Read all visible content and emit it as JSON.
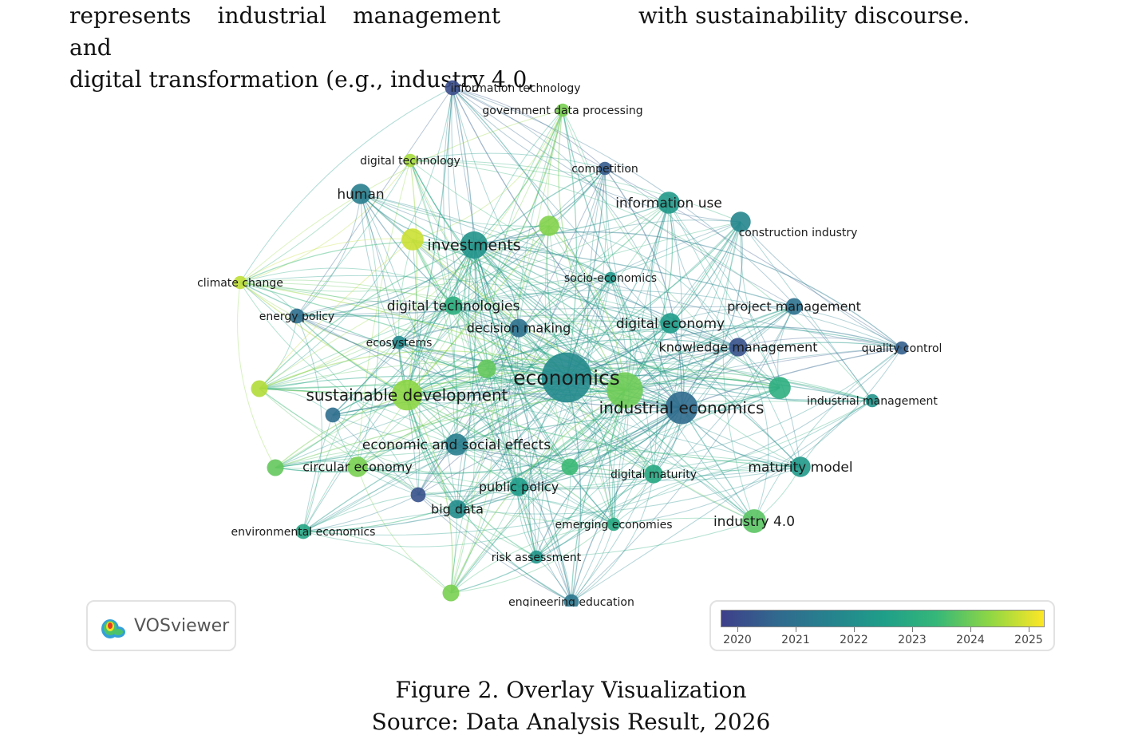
{
  "body_text": {
    "left_lines": [
      "represents industrial management and",
      "digital transformation (e.g., industry 4.0,"
    ],
    "right_lines": [
      "with sustainability discourse."
    ]
  },
  "network": {
    "terms": [
      {
        "id": "information-technology",
        "label": "information technology",
        "year": 2020.3,
        "weight": 0.4
      },
      {
        "id": "government-data-processing",
        "label": "government data processing",
        "year": 2024.2,
        "weight": 0.3
      },
      {
        "id": "digital-technology",
        "label": "digital technology",
        "year": 2024.6,
        "weight": 0.3
      },
      {
        "id": "competition",
        "label": "competition",
        "year": 2020.6,
        "weight": 0.3
      },
      {
        "id": "human",
        "label": "human",
        "year": 2021.6,
        "weight": 0.7
      },
      {
        "id": "information-use",
        "label": "information use",
        "year": 2022.5,
        "weight": 0.8
      },
      {
        "id": "construction-industry",
        "label": "construction industry",
        "year": 2021.9,
        "weight": 0.7
      },
      {
        "id": "investments",
        "label": "investments",
        "year": 2022.3,
        "weight": 1.1
      },
      {
        "id": "climate-change",
        "label": "climate change",
        "year": 2024.8,
        "weight": 0.3
      },
      {
        "id": "socio-economics",
        "label": "socio-economics",
        "year": 2022.4,
        "weight": 0.2
      },
      {
        "id": "energy-policy",
        "label": "energy policy",
        "year": 2021.1,
        "weight": 0.4
      },
      {
        "id": "digital-technologies",
        "label": "digital technologies",
        "year": 2023.2,
        "weight": 0.6
      },
      {
        "id": "project-management",
        "label": "project management",
        "year": 2021.2,
        "weight": 0.5
      },
      {
        "id": "decision-making",
        "label": "decision making",
        "year": 2021.2,
        "weight": 0.6
      },
      {
        "id": "digital-economy",
        "label": "digital economy",
        "year": 2022.6,
        "weight": 0.7
      },
      {
        "id": "ecosystems",
        "label": "ecosystems",
        "year": 2022.0,
        "weight": 0.3
      },
      {
        "id": "knowledge-management",
        "label": "knowledge management",
        "year": 2020.4,
        "weight": 0.6
      },
      {
        "id": "quality-control",
        "label": "quality control",
        "year": 2020.7,
        "weight": 0.3
      },
      {
        "id": "economics",
        "label": "economics",
        "year": 2022.0,
        "weight": 2.4
      },
      {
        "id": "sustainable-development",
        "label": "sustainable development",
        "year": 2024.4,
        "weight": 1.3
      },
      {
        "id": "industrial-economics",
        "label": "industrial economics",
        "year": 2021.0,
        "weight": 1.4
      },
      {
        "id": "industrial-management",
        "label": "industrial management",
        "year": 2022.3,
        "weight": 0.3
      },
      {
        "id": "economic-and-social-effects",
        "label": "economic and social effects",
        "year": 2021.6,
        "weight": 0.8
      },
      {
        "id": "circular-economy",
        "label": "circular economy",
        "year": 2024.2,
        "weight": 0.7
      },
      {
        "id": "maturity-model",
        "label": "maturity model",
        "year": 2022.5,
        "weight": 0.7
      },
      {
        "id": "digital-maturity",
        "label": "digital maturity",
        "year": 2023.0,
        "weight": 0.6
      },
      {
        "id": "public-policy",
        "label": "public policy",
        "year": 2022.6,
        "weight": 0.6
      },
      {
        "id": "big-data",
        "label": "big data",
        "year": 2022.1,
        "weight": 0.6
      },
      {
        "id": "environmental-economics",
        "label": "environmental economics",
        "year": 2022.9,
        "weight": 0.4
      },
      {
        "id": "emerging-economies",
        "label": "emerging economies",
        "year": 2023.0,
        "weight": 0.3
      },
      {
        "id": "industry-4-0",
        "label": "industry 4.0",
        "year": 2023.9,
        "weight": 0.9
      },
      {
        "id": "risk-assessment",
        "label": "risk assessment",
        "year": 2022.4,
        "weight": 0.3
      },
      {
        "id": "engineering-education",
        "label": "engineering education",
        "year": 2021.4,
        "weight": 0.4
      }
    ],
    "unlabeled_nodes": [
      {
        "year": 2024.9,
        "weight": 0.8
      },
      {
        "year": 2024.3,
        "weight": 0.7
      },
      {
        "year": 2024.0,
        "weight": 0.6
      },
      {
        "year": 2024.1,
        "weight": 1.6
      },
      {
        "year": 2023.2,
        "weight": 0.8
      },
      {
        "year": 2024.7,
        "weight": 0.5
      },
      {
        "year": 2021.1,
        "weight": 0.4
      },
      {
        "year": 2020.4,
        "weight": 0.4
      },
      {
        "year": 2024.0,
        "weight": 0.5
      },
      {
        "year": 2023.6,
        "weight": 0.5
      },
      {
        "year": 2024.2,
        "weight": 0.5
      }
    ]
  },
  "logo": {
    "text": "VOSviewer"
  },
  "legend": {
    "year_labels": [
      "2020",
      "2021",
      "2022",
      "2023",
      "2024",
      "2025"
    ],
    "colors": [
      "#3e3f8a",
      "#31688e",
      "#26828e",
      "#1f9e89",
      "#35b779",
      "#8fd744",
      "#fde725"
    ]
  },
  "caption": {
    "figure": "Figure 2. Overlay Visualization",
    "source": "Source: Data Analysis Result, 2026"
  }
}
